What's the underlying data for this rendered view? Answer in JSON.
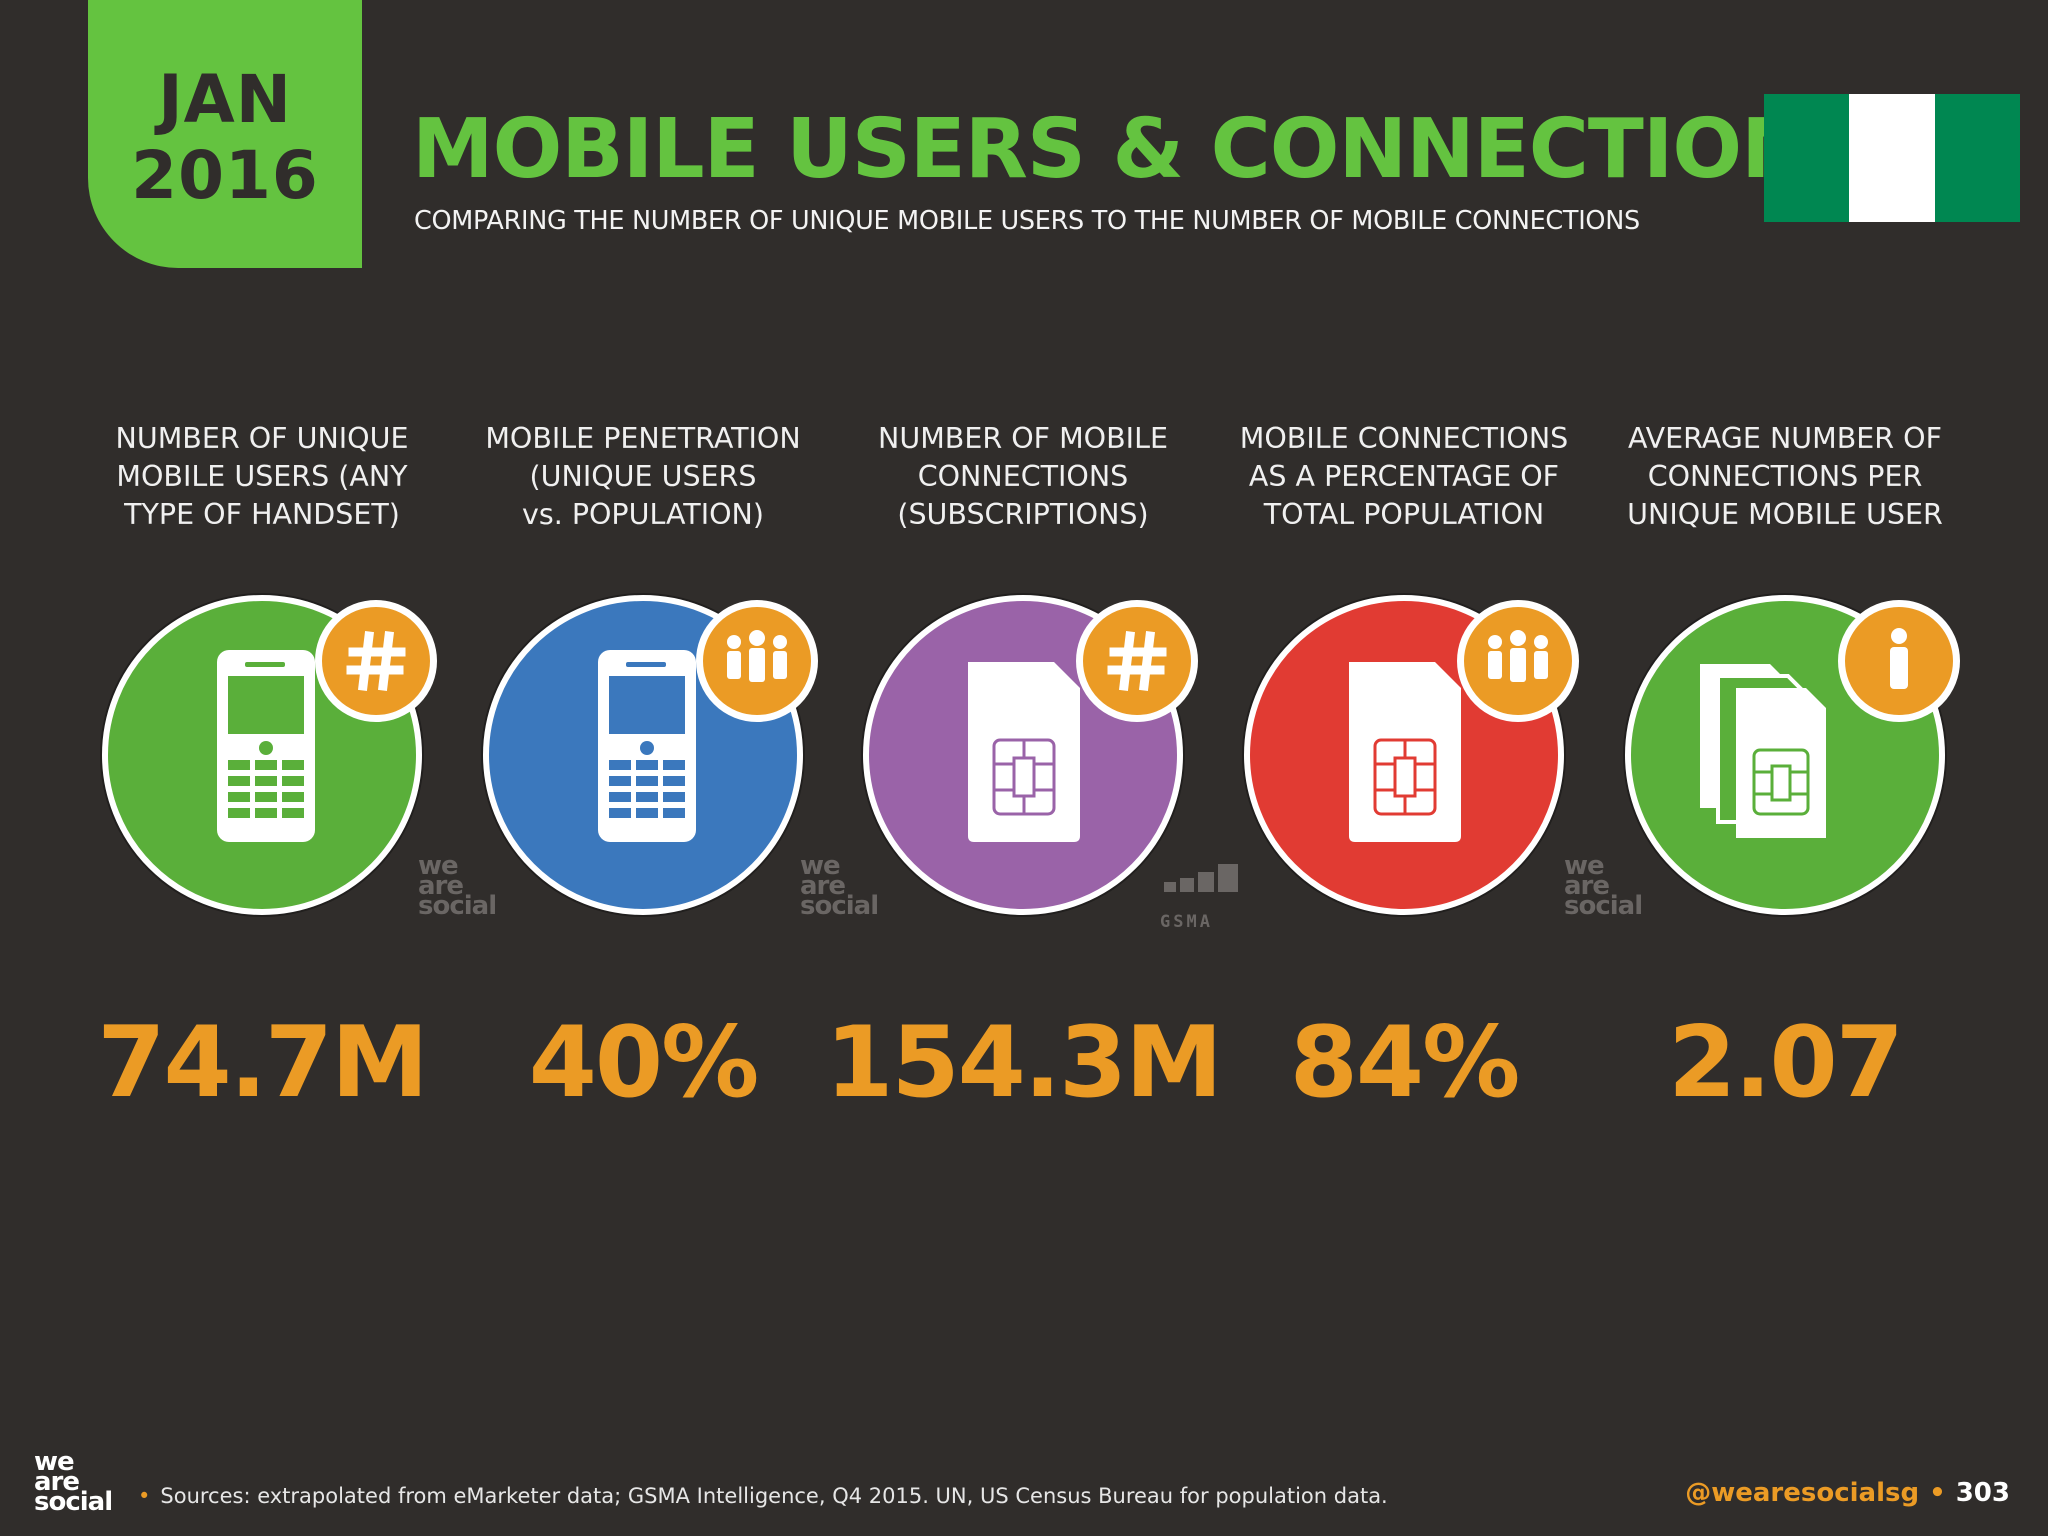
{
  "header": {
    "month": "JAN",
    "year": "2016",
    "title": "MOBILE USERS & CONNECTIONS",
    "subtitle": "COMPARING THE NUMBER OF UNIQUE MOBILE USERS TO THE NUMBER OF MOBILE CONNECTIONS"
  },
  "flag": {
    "colors": [
      "#008751",
      "#ffffff",
      "#008751"
    ]
  },
  "metrics": [
    {
      "label": "NUMBER OF UNIQUE\nMOBILE USERS (ANY\nTYPE OF HANDSET)",
      "value": "74.7M",
      "color": "#5aaf3a",
      "icon": "mobile-phone-icon",
      "badge": "hash-icon"
    },
    {
      "label": "MOBILE PENETRATION\n(UNIQUE USERS\nvs. POPULATION)",
      "value": "40%",
      "color": "#3b78bd",
      "icon": "mobile-phone-icon",
      "badge": "people-icon"
    },
    {
      "label": "NUMBER OF MOBILE\nCONNECTIONS\n(SUBSCRIPTIONS)",
      "value": "154.3M",
      "color": "#9a63a8",
      "icon": "sim-card-icon",
      "badge": "hash-icon"
    },
    {
      "label": "MOBILE CONNECTIONS\nAS A PERCENTAGE OF\nTOTAL POPULATION",
      "value": "84%",
      "color": "#e13b33",
      "icon": "sim-card-icon",
      "badge": "people-icon"
    },
    {
      "label": "AVERAGE NUMBER OF\nCONNECTIONS PER\nUNIQUE MOBILE USER",
      "value": "2.07",
      "color": "#5aaf3a",
      "icon": "sim-cards-stack-icon",
      "badge": "person-icon"
    }
  ],
  "watermarks": {
    "brand_line1": "we",
    "brand_line2": "are",
    "brand_line3": "social",
    "gsma": "GSMA"
  },
  "footer": {
    "logo_line1": "we",
    "logo_line2": "are",
    "logo_line3": "social",
    "sources": "Sources: extrapolated from eMarketer data; GSMA Intelligence, Q4 2015. UN, US Census Bureau for population data.",
    "handle": "@wearesocialsg",
    "page": "303"
  },
  "accent_colors": {
    "green": "#64c340",
    "orange": "#eb9b25",
    "background": "#302d2b"
  }
}
